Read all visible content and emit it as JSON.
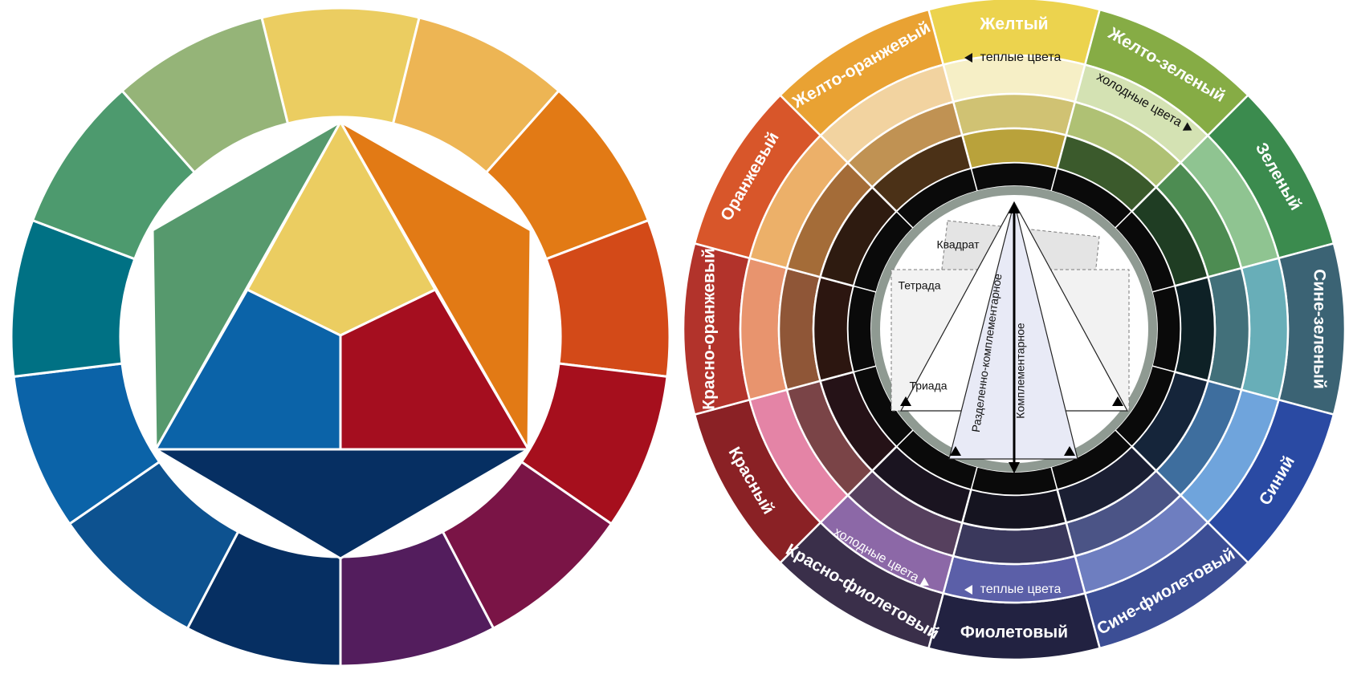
{
  "left_wheel": {
    "outer_ring": [
      {
        "name": "yellow",
        "color": "#ebcd61"
      },
      {
        "name": "yellow-orange",
        "color": "#edb554"
      },
      {
        "name": "orange",
        "color": "#e27a15"
      },
      {
        "name": "red-orange",
        "color": "#d34a18"
      },
      {
        "name": "red",
        "color": "#a60f1d"
      },
      {
        "name": "red-violet",
        "color": "#7a1446"
      },
      {
        "name": "violet",
        "color": "#531d5d"
      },
      {
        "name": "blue-violet",
        "color": "#062f62"
      },
      {
        "name": "blue",
        "color": "#0d5290"
      },
      {
        "name": "blue-2",
        "color": "#0b63a8"
      },
      {
        "name": "blue-green",
        "color": "#007184"
      },
      {
        "name": "green",
        "color": "#4d9a6e"
      },
      {
        "name": "yellow-green",
        "color": "#95b478"
      }
    ],
    "inner_figures": {
      "yellow": "#ebcd61",
      "orange": "#e27a15",
      "green": "#56996d",
      "blue": "#0b63a8",
      "red": "#a50e1f",
      "navy": "#062f62"
    }
  },
  "right_wheel": {
    "segments": [
      {
        "label": "Желтый",
        "colors": [
          "#ecd34e",
          "#f6efc6",
          "#d0c273",
          "#b9a23b"
        ]
      },
      {
        "label": "Желто-зеленый",
        "colors": [
          "#86ac45",
          "#d4e2b3",
          "#afc174",
          "#3b5a2c"
        ]
      },
      {
        "label": "Зеленый",
        "colors": [
          "#3b8b4e",
          "#8fc491",
          "#4d8c52",
          "#1f3d23"
        ]
      },
      {
        "label": "Сине-зеленый",
        "colors": [
          "#3b6374",
          "#68aeb8",
          "#42707a",
          "#0e2126"
        ]
      },
      {
        "label": "Синий",
        "colors": [
          "#2a4aa3",
          "#6fa4dc",
          "#3e6e9e",
          "#15253a"
        ]
      },
      {
        "label": "Сине-фиолетовый",
        "colors": [
          "#3c4e95",
          "#6e7ec0",
          "#4b5486",
          "#1b1f33"
        ]
      },
      {
        "label": "Фиолетовый",
        "colors": [
          "#222241",
          "#5b5fa8",
          "#3a385c",
          "#151420"
        ]
      },
      {
        "label": "Красно-фиолетовый",
        "colors": [
          "#3a2f4a",
          "#8c68a7",
          "#56405e",
          "#1a1420"
        ]
      },
      {
        "label": "Красный",
        "colors": [
          "#8a2125",
          "#e484a6",
          "#7a4447",
          "#251217"
        ]
      },
      {
        "label": "Красно-оранжевый",
        "colors": [
          "#b2332b",
          "#e8946e",
          "#8f5637",
          "#2c1610"
        ]
      },
      {
        "label": "Оранжевый",
        "colors": [
          "#d8562a",
          "#ecb069",
          "#a46c38",
          "#2e1b10"
        ]
      },
      {
        "label": "Желто-оранжевый",
        "colors": [
          "#e9a233",
          "#f2d3a0",
          "#c09253",
          "#4b3117"
        ]
      }
    ],
    "notes": {
      "warm_top": "теплые цвета",
      "cold_top": "холодные цвета",
      "warm_bottom": "теплые цвета",
      "cold_bottom": "холодные цвета"
    },
    "schemes": {
      "square": "Квадрат",
      "tetrad": "Тетрада",
      "triad": "Триада",
      "split": "Разделенно-комплементарное",
      "complementary": "Комплементарное"
    }
  }
}
